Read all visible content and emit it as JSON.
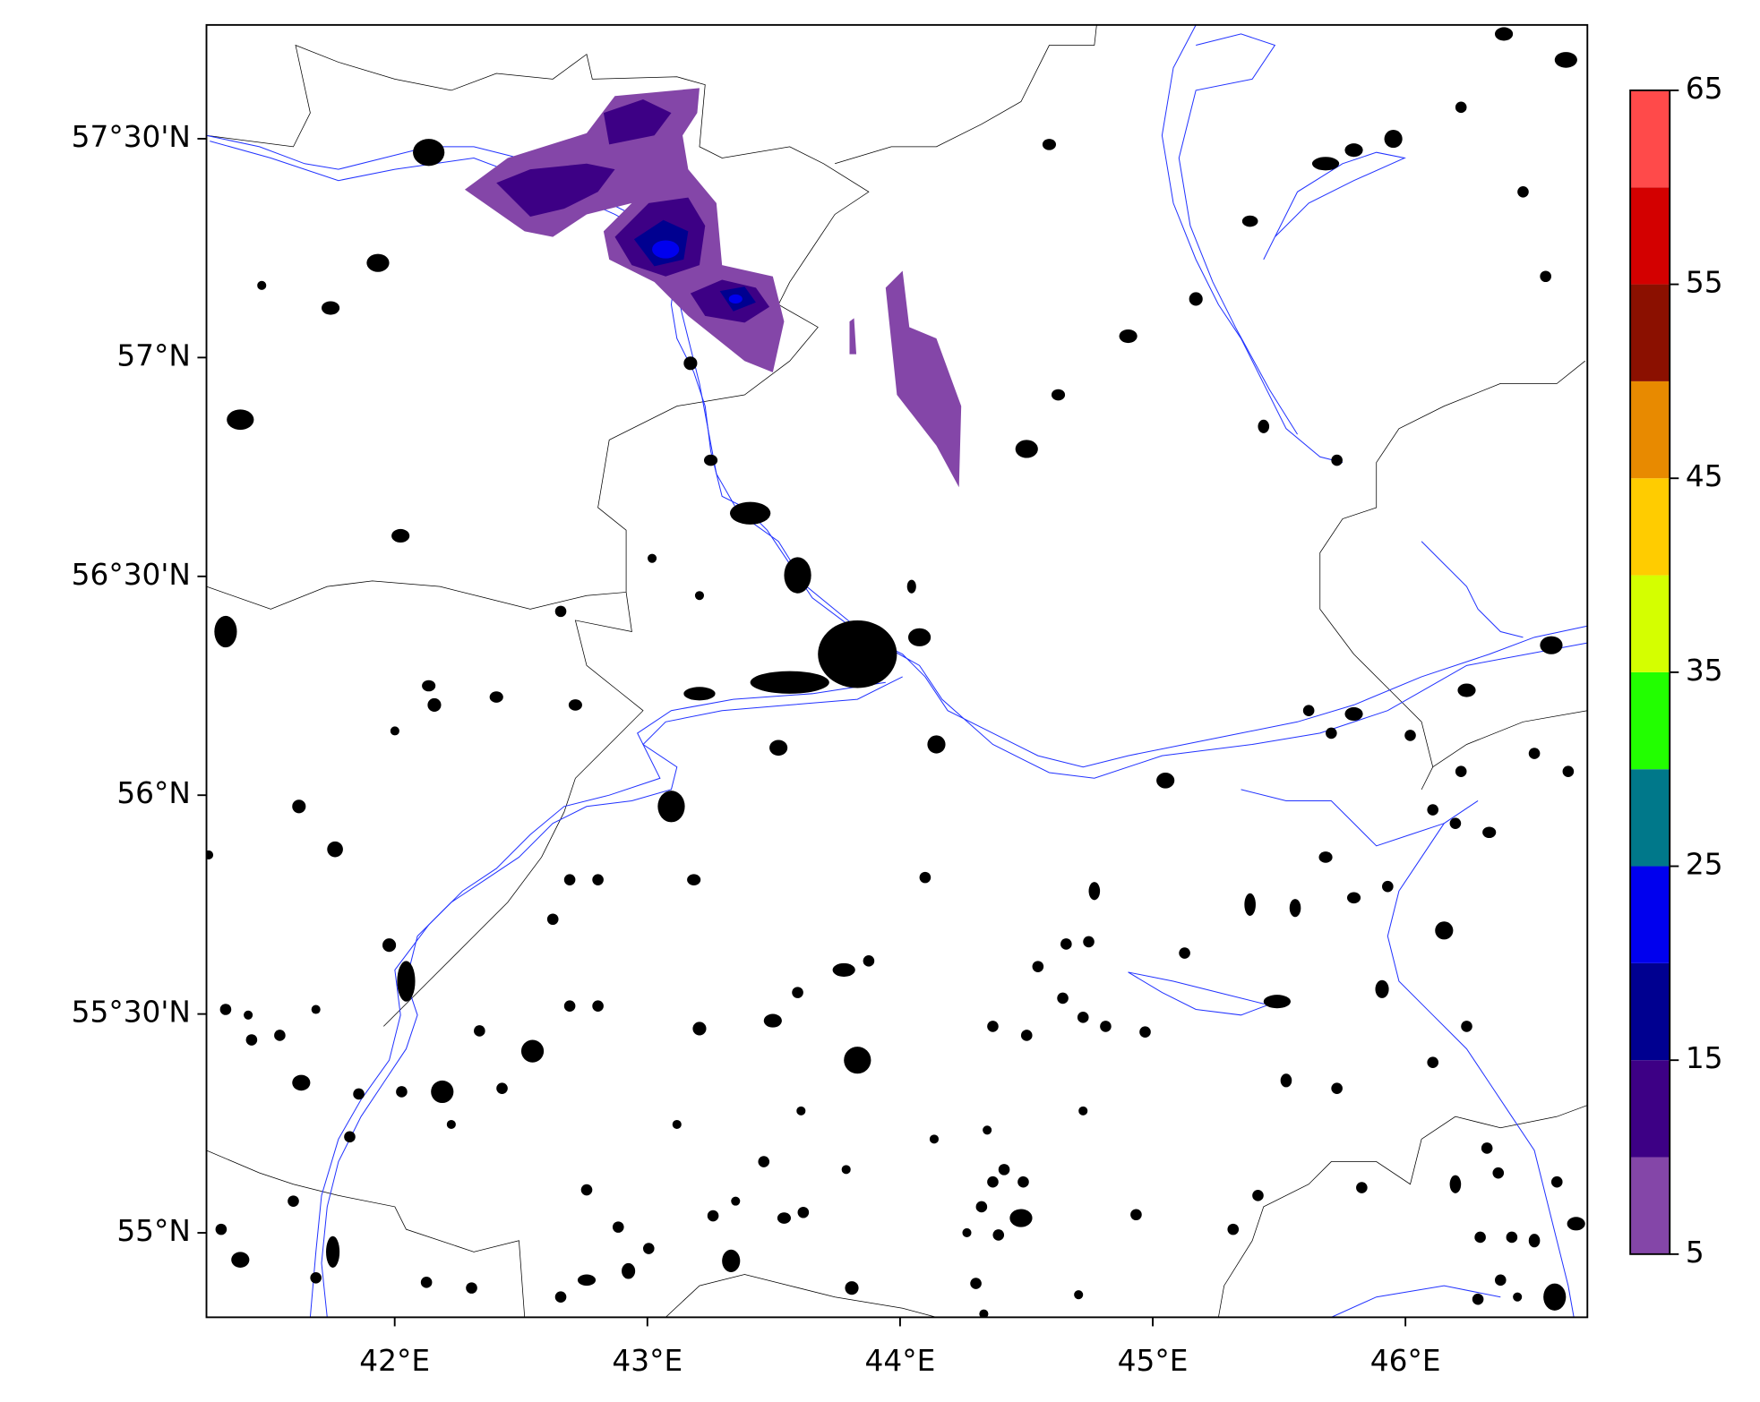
{
  "map": {
    "xlim": [
      41.255,
      46.72
    ],
    "ylim": [
      54.807,
      57.76
    ],
    "xticks": [
      {
        "value": 42,
        "label": "42°E"
      },
      {
        "value": 43,
        "label": "43°E"
      },
      {
        "value": 44,
        "label": "44°E"
      },
      {
        "value": 45,
        "label": "45°E"
      },
      {
        "value": 46,
        "label": "46°E"
      }
    ],
    "yticks": [
      {
        "value": 55,
        "label": "55°N"
      },
      {
        "value": 55.5,
        "label": "55°30'N"
      },
      {
        "value": 56,
        "label": "56°N"
      },
      {
        "value": 56.5,
        "label": "56°30'N"
      },
      {
        "value": 57,
        "label": "57°N"
      },
      {
        "value": 57.5,
        "label": "57°30'N"
      }
    ]
  },
  "colorbar": {
    "levels": [
      5,
      10,
      15,
      20,
      25,
      30,
      35,
      40,
      45,
      50,
      55,
      60,
      65
    ],
    "colors": [
      "#8446a8",
      "#3d0085",
      "#000090",
      "#0000ee",
      "#00788a",
      "#22ff00",
      "#d4ff00",
      "#ffcc00",
      "#e88a00",
      "#8b1000",
      "#d30000",
      "#ff4a4a"
    ],
    "ticks": [
      5,
      15,
      25,
      35,
      45,
      55,
      65
    ]
  }
}
